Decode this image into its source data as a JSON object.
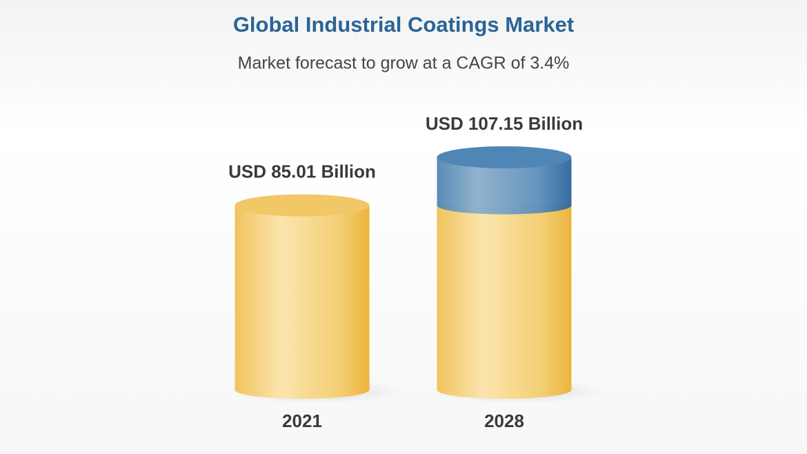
{
  "chart_data": {
    "type": "cylinder",
    "title": "Global Industrial Coatings Market",
    "subtitle": "Market forecast to grow at a CAGR of 3.4%",
    "categories": [
      "2021",
      "2028"
    ],
    "values": [
      85.01,
      107.15
    ],
    "value_labels": [
      "USD 85.01 Billion",
      "USD 107.15 Billion"
    ],
    "color": "#f2c766",
    "growth_color": "#4f86b6"
  }
}
